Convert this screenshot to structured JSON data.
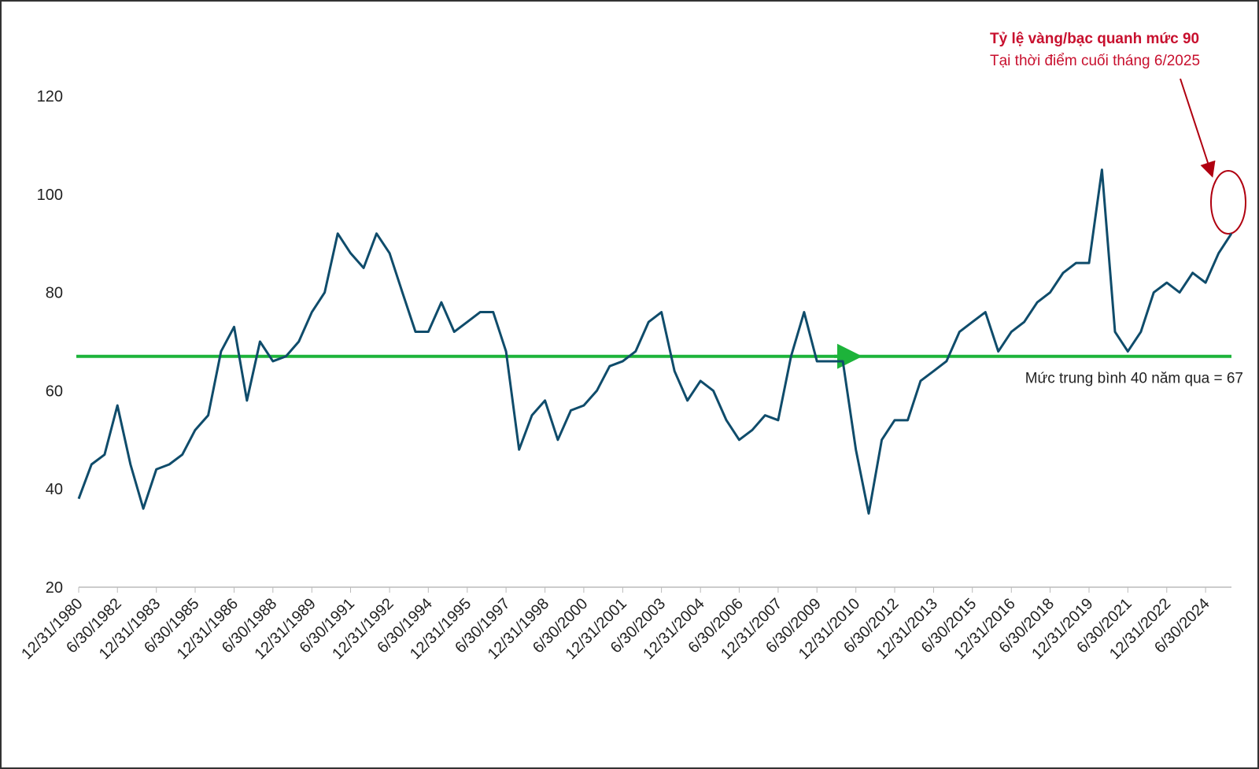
{
  "chart_data": {
    "type": "line",
    "annotation_title": "Tỷ lệ vàng/bạc quanh mức 90",
    "annotation_subtitle": "Tại thời điểm cuối tháng 6/2025",
    "mean_label": "Mức trung bình 40 năm qua = 67",
    "mean_value": 67,
    "mean_color": "#1db33a",
    "x": [
      "12/31/1980",
      "6/30/1981",
      "12/31/1981",
      "6/30/1982",
      "12/31/1982",
      "6/30/1983",
      "12/31/1983",
      "6/30/1984",
      "12/31/1984",
      "6/30/1985",
      "12/31/1985",
      "6/30/1986",
      "12/31/1986",
      "6/30/1987",
      "12/31/1987",
      "6/30/1988",
      "12/31/1988",
      "6/30/1989",
      "12/31/1989",
      "6/30/1990",
      "12/31/1990",
      "6/30/1991",
      "12/31/1991",
      "6/30/1992",
      "12/31/1992",
      "6/30/1993",
      "12/31/1993",
      "6/30/1994",
      "12/31/1994",
      "6/30/1995",
      "12/31/1995",
      "6/30/1996",
      "12/31/1996",
      "6/30/1997",
      "12/31/1997",
      "6/30/1998",
      "12/31/1998",
      "6/30/1999",
      "12/31/1999",
      "6/30/2000",
      "12/31/2000",
      "6/30/2001",
      "12/31/2001",
      "6/30/2002",
      "12/31/2002",
      "6/30/2003",
      "12/31/2003",
      "6/30/2004",
      "12/31/2004",
      "6/30/2005",
      "12/31/2005",
      "6/30/2006",
      "12/31/2006",
      "6/30/2007",
      "12/31/2007",
      "6/30/2008",
      "12/31/2008",
      "6/30/2009",
      "12/31/2009",
      "6/30/2010",
      "12/31/2010",
      "6/30/2011",
      "12/31/2011",
      "6/30/2012",
      "12/31/2012",
      "6/30/2013",
      "12/31/2013",
      "6/30/2014",
      "12/31/2014",
      "6/30/2015",
      "12/31/2015",
      "6/30/2016",
      "12/31/2016",
      "6/30/2017",
      "12/31/2017",
      "6/30/2018",
      "12/31/2018",
      "6/30/2019",
      "12/31/2019",
      "6/30/2020",
      "12/31/2020",
      "6/30/2021",
      "12/31/2021",
      "6/30/2022",
      "12/31/2022",
      "6/30/2023",
      "12/31/2023",
      "6/30/2024",
      "12/31/2024",
      "6/30/2025"
    ],
    "series": [
      {
        "name": "Tỷ lệ vàng/bạc",
        "color": "#0f4c6b",
        "values": [
          38,
          45,
          47,
          57,
          45,
          36,
          44,
          45,
          47,
          52,
          55,
          68,
          73,
          58,
          70,
          66,
          67,
          70,
          76,
          80,
          92,
          88,
          85,
          92,
          88,
          80,
          72,
          72,
          78,
          72,
          74,
          76,
          76,
          68,
          48,
          55,
          58,
          50,
          56,
          57,
          60,
          65,
          66,
          68,
          74,
          76,
          64,
          58,
          62,
          60,
          54,
          50,
          52,
          55,
          54,
          67,
          76,
          66,
          66,
          66,
          48,
          35,
          50,
          54,
          54,
          62,
          64,
          66,
          72,
          74,
          76,
          68,
          72,
          74,
          78,
          80,
          84,
          86,
          86,
          105,
          72,
          68,
          72,
          80,
          82,
          80,
          84,
          82,
          88,
          92
        ]
      }
    ],
    "xticks": [
      "12/31/1980",
      "6/30/1982",
      "12/31/1983",
      "6/30/1985",
      "12/31/1986",
      "6/30/1988",
      "12/31/1989",
      "6/30/1991",
      "12/31/1992",
      "6/30/1994",
      "12/31/1995",
      "6/30/1997",
      "12/31/1998",
      "6/30/2000",
      "12/31/2001",
      "6/30/2003",
      "12/31/2004",
      "6/30/2006",
      "12/31/2007",
      "6/30/2009",
      "12/31/2010",
      "6/30/2012",
      "12/31/2013",
      "6/30/2015",
      "12/31/2016",
      "6/30/2018",
      "12/31/2019",
      "6/30/2021",
      "12/31/2022",
      "6/30/2024"
    ],
    "ylim": [
      20,
      120
    ],
    "yticks": [
      20,
      40,
      60,
      80,
      100,
      120
    ],
    "grid": false
  }
}
